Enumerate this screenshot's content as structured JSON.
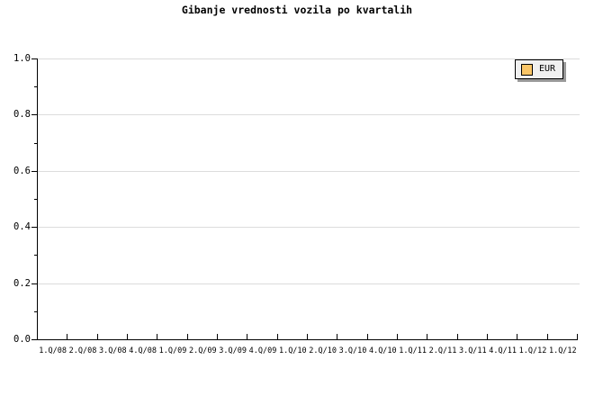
{
  "title": "Gibanje vrednosti vozila po kvartalih",
  "legend": {
    "position": "top-right",
    "items": [
      {
        "label": "EUR",
        "swatch_color": "#f9c567"
      }
    ]
  },
  "colors": {
    "background": "#ffffff",
    "axis": "#000000",
    "text": "#000000",
    "gridline": "#dcdcdc",
    "legend_bg": "#f0f0f0",
    "legend_border": "#000000",
    "legend_shadow": "#999999",
    "series_eur": "#f9c567"
  },
  "chart_data": {
    "type": "line",
    "title": "Gibanje vrednosti vozila po kvartalih",
    "xlabel": "",
    "ylabel": "",
    "categories": [
      "1.Q/08",
      "2.Q/08",
      "3.Q/08",
      "4.Q/08",
      "1.Q/09",
      "2.Q/09",
      "3.Q/09",
      "4.Q/09",
      "1.Q/10",
      "2.Q/10",
      "3.Q/10",
      "4.Q/10",
      "1.Q/11",
      "2.Q/11",
      "3.Q/11",
      "4.Q/11",
      "1.Q/12",
      "1.Q/12"
    ],
    "series": [
      {
        "name": "EUR",
        "values": []
      }
    ],
    "ylim": [
      0.0,
      1.0
    ],
    "y_major_tick_step": 0.2,
    "y_minor_tick_step": 0.1,
    "y_tick_labels": [
      "0.0",
      "0.2",
      "0.4",
      "0.6",
      "0.8",
      "1.0"
    ],
    "grid": "horizontal-major",
    "legend_position": "top-right"
  }
}
